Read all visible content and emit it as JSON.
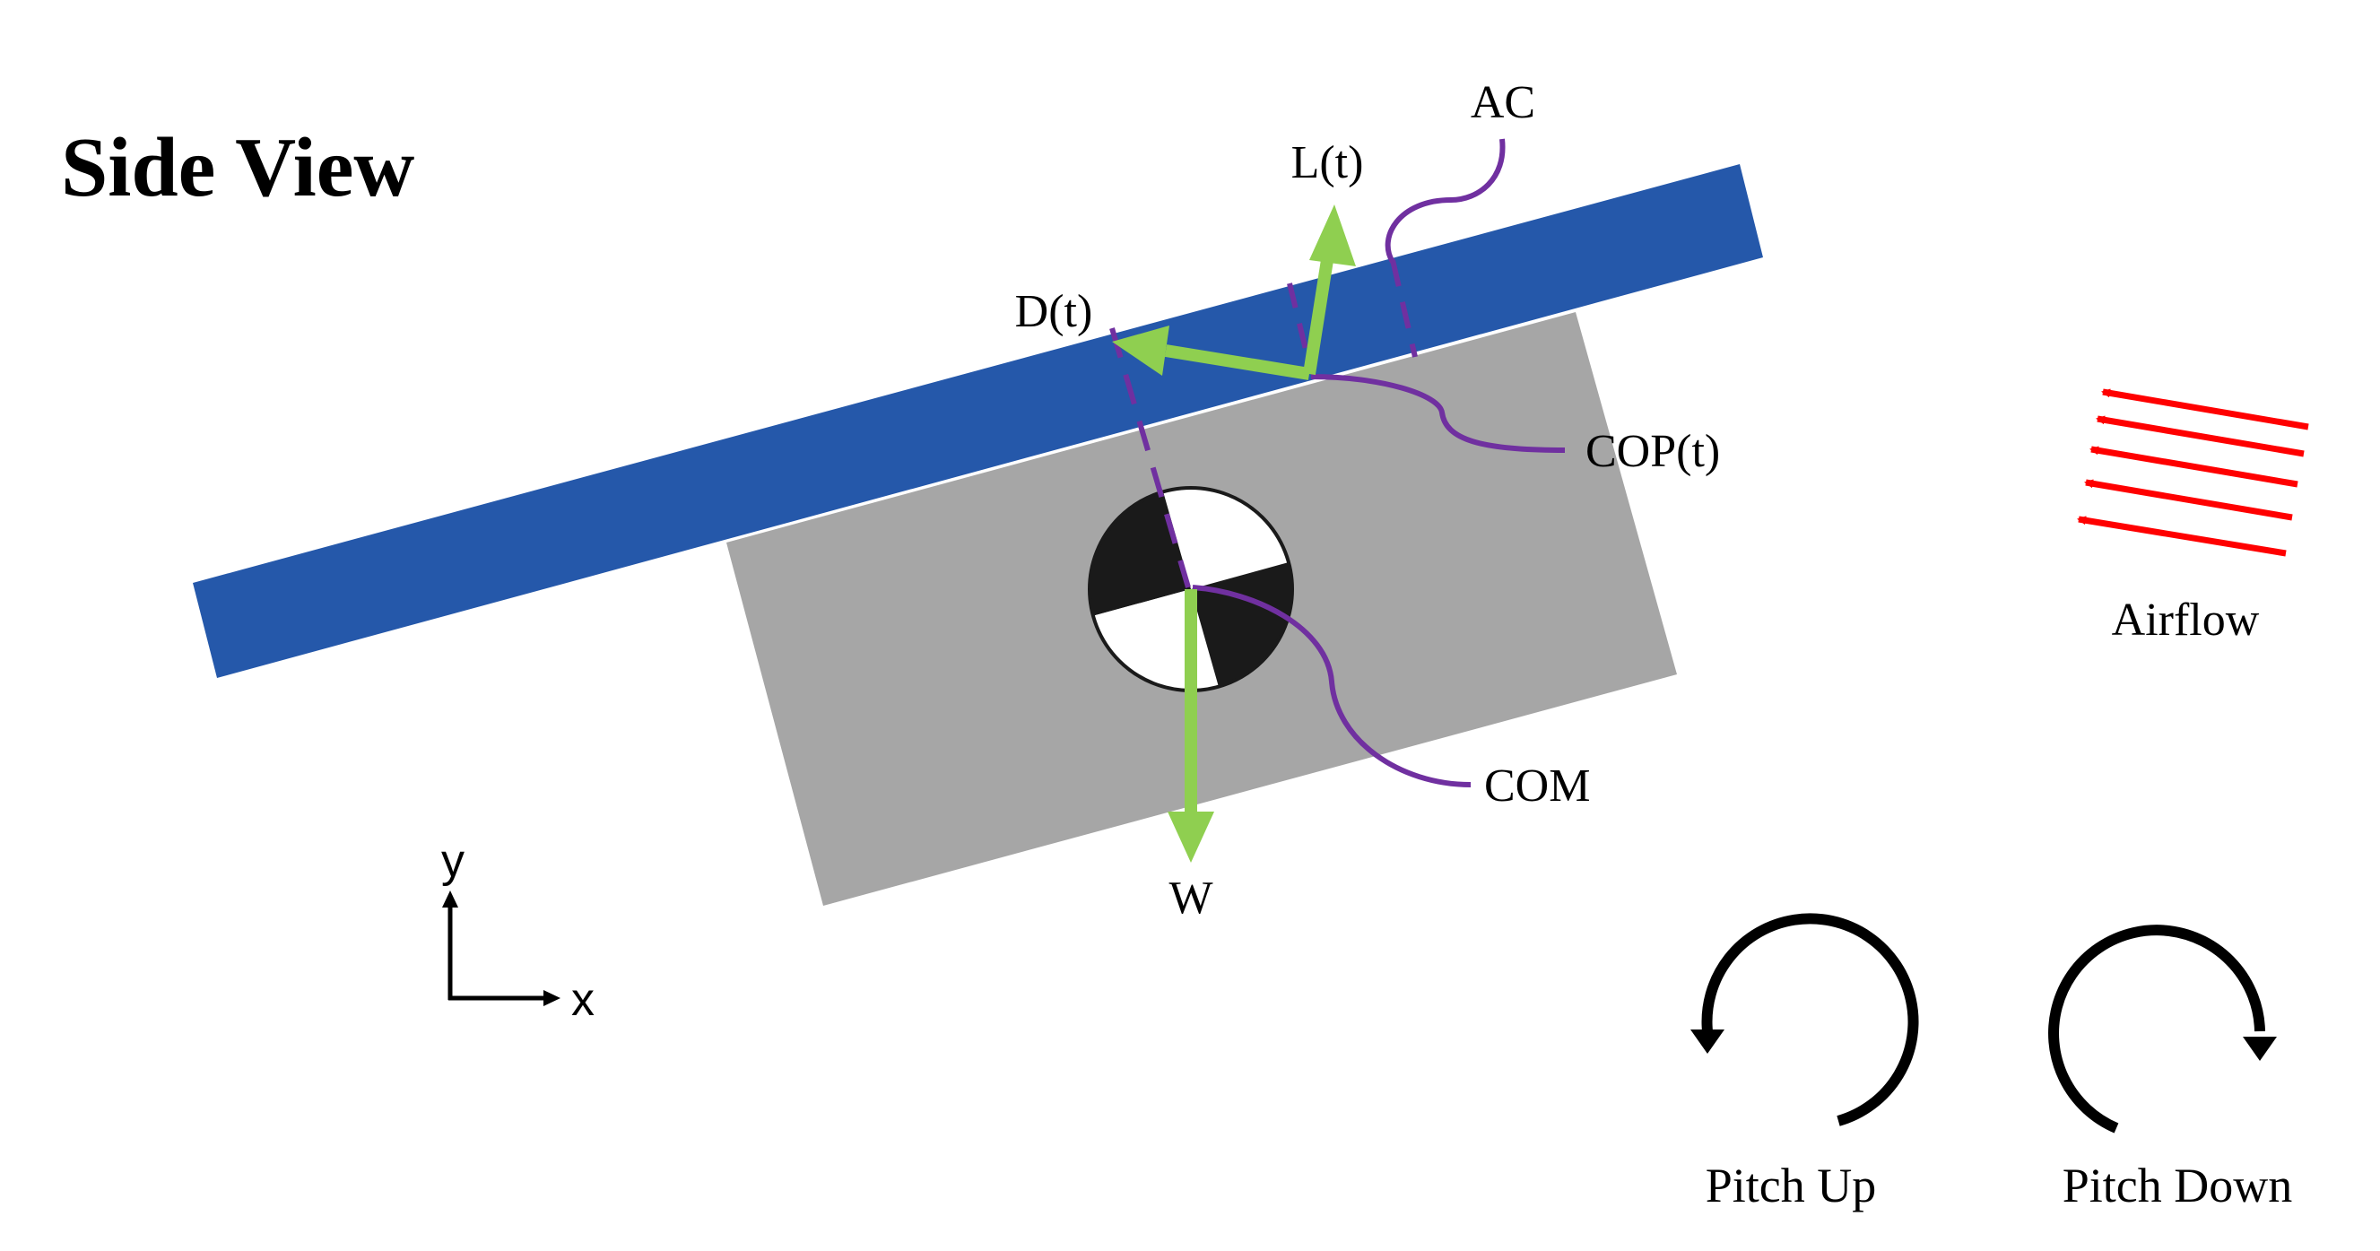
{
  "title": "Side View",
  "labels": {
    "lift": "L(t)",
    "drag": "D(t)",
    "ac": "AC",
    "cop": "COP(t)",
    "com": "COM",
    "weight": "W",
    "airflow": "Airflow",
    "pitch_up": "Pitch Up",
    "pitch_down": "Pitch Down"
  },
  "axes": {
    "x": "x",
    "y": "y"
  },
  "colors": {
    "wing": "#2558AA",
    "body": "#A6A6A6",
    "force_arrow": "#8FCF50",
    "reference_line": "#7030A0",
    "airflow_arrow": "#FF0000",
    "text": "#000000"
  },
  "icons": {
    "com_marker": "center-of-mass-icon",
    "pitch_up": "counterclockwise-arrow-icon",
    "pitch_down": "clockwise-arrow-icon"
  }
}
